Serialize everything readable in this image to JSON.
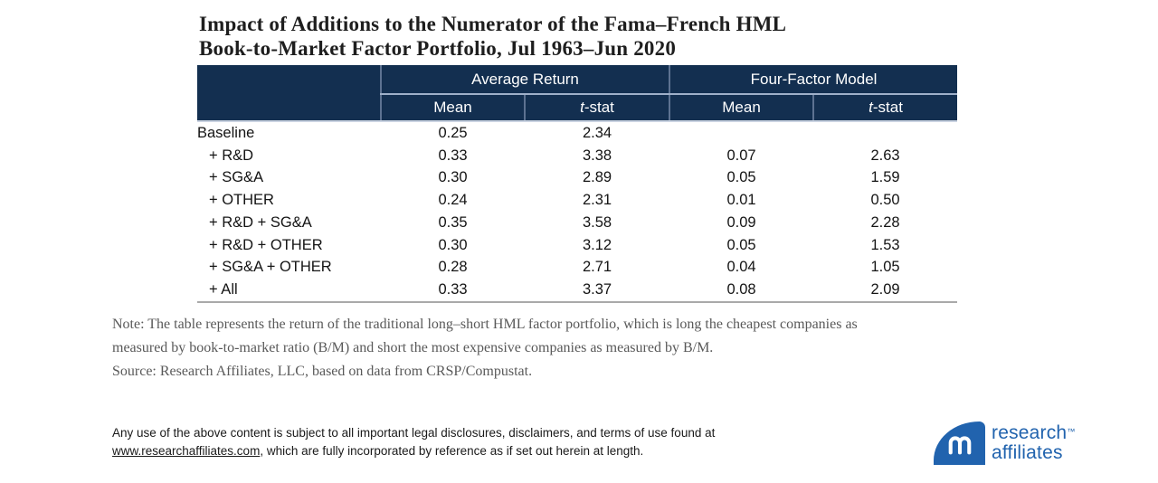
{
  "title": {
    "line1": "Impact of Additions to the Numerator of the Fama–French HML",
    "line2": "Book-to-Market Factor Portfolio, Jul 1963–Jun 2020"
  },
  "table": {
    "group_headers": [
      "Average Return",
      "Four-Factor Model"
    ],
    "sub_headers": [
      "Mean",
      "t-stat",
      "Mean",
      "t-stat"
    ],
    "rows": [
      {
        "label": "Baseline",
        "values": [
          "0.25",
          "2.34",
          "",
          ""
        ]
      },
      {
        "label": "+ R&D",
        "values": [
          "0.33",
          "3.38",
          "0.07",
          "2.63"
        ]
      },
      {
        "label": "+ SG&A",
        "values": [
          "0.30",
          "2.89",
          "0.05",
          "1.59"
        ]
      },
      {
        "label": "+ OTHER",
        "values": [
          "0.24",
          "2.31",
          "0.01",
          "0.50"
        ]
      },
      {
        "label": "+ R&D + SG&A",
        "values": [
          "0.35",
          "3.58",
          "0.09",
          "2.28"
        ]
      },
      {
        "label": "+ R&D + OTHER",
        "values": [
          "0.30",
          "3.12",
          "0.05",
          "1.53"
        ]
      },
      {
        "label": "+ SG&A + OTHER",
        "values": [
          "0.28",
          "2.71",
          "0.04",
          "1.05"
        ]
      },
      {
        "label": "+ All",
        "values": [
          "0.33",
          "3.37",
          "0.08",
          "2.09"
        ]
      }
    ]
  },
  "chart_data": {
    "type": "table",
    "title": "Impact of Additions to the Numerator of the Fama–French HML Book-to-Market Factor Portfolio, Jul 1963–Jun 2020",
    "column_groups": [
      "Average Return",
      "Four-Factor Model"
    ],
    "columns": [
      "",
      "Mean (Average Return)",
      "t-stat (Average Return)",
      "Mean (Four-Factor Model)",
      "t-stat (Four-Factor Model)"
    ],
    "rows": [
      [
        "Baseline",
        0.25,
        2.34,
        null,
        null
      ],
      [
        "+ R&D",
        0.33,
        3.38,
        0.07,
        2.63
      ],
      [
        "+ SG&A",
        0.3,
        2.89,
        0.05,
        1.59
      ],
      [
        "+ OTHER",
        0.24,
        2.31,
        0.01,
        0.5
      ],
      [
        "+ R&D + SG&A",
        0.35,
        3.58,
        0.09,
        2.28
      ],
      [
        "+ R&D + OTHER",
        0.3,
        3.12,
        0.05,
        1.53
      ],
      [
        "+ SG&A + OTHER",
        0.28,
        2.71,
        0.04,
        1.05
      ],
      [
        "+ All",
        0.33,
        3.37,
        0.08,
        2.09
      ]
    ]
  },
  "note": {
    "line1": "Note: The table represents the return of the traditional long–short HML factor portfolio, which is long the cheapest companies as",
    "line2": "measured by book-to-market ratio (B/M) and short the most expensive companies as measured by B/M.",
    "source": "Source: Research Affiliates, LLC, based on data from CRSP/Compustat."
  },
  "footer": {
    "line1": "Any use of the above content is subject to all important legal disclosures, disclaimers, and terms of use found at",
    "link_text": "www.researchaffiliates.com",
    "line2_after_link": ", which are fully incorporated by reference as if set out herein at length."
  },
  "logo": {
    "word1": "research",
    "word2": "affiliates",
    "trademark": "™",
    "brand_color": "#2163AE"
  },
  "colors": {
    "header_bg": "#132F50",
    "header_divider": "#5d7291",
    "header_divider_light": "#9FB0C9",
    "header_bottom_line": "#CBD4E2",
    "table_bottom_rule": "#A9A9A9",
    "note_text": "#595959",
    "logo_blue": "#2163AE"
  }
}
